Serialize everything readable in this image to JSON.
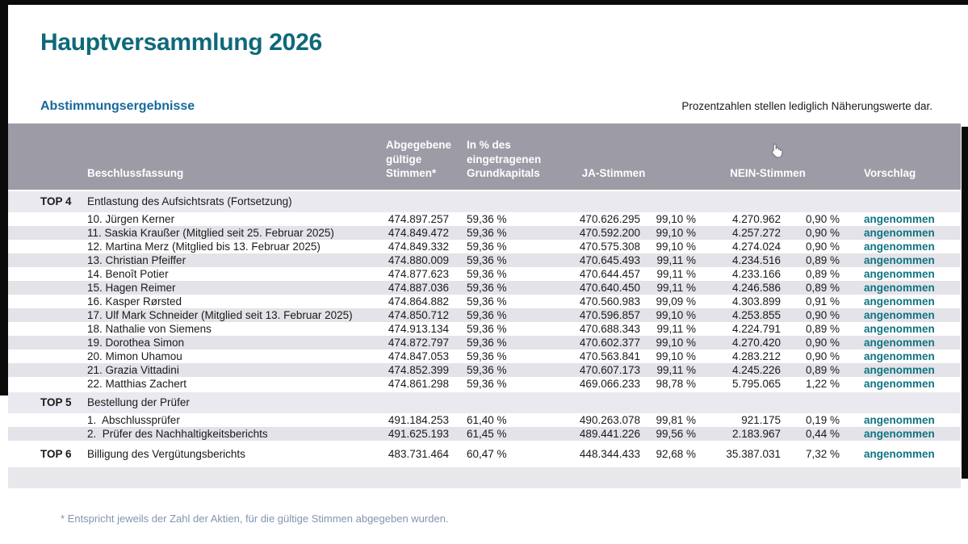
{
  "page": {
    "title": "Hauptversammlung 2026",
    "section_title": "Abstimmungsergebnisse",
    "note": "Prozentzahlen stellen lediglich Näherungswerte dar.",
    "footnote": "* Entspricht jeweils der Zahl der Aktien, für die gültige Stimmen abgegeben wurden."
  },
  "colors": {
    "title_teal": "#0e6978",
    "subtitle_blue": "#17689b",
    "accepted_teal": "#0f7482",
    "header_band_gray": "#9c9ba6",
    "row_stripe_gray": "#e4e3e9",
    "footnote_blue_gray": "#7f96af"
  },
  "icons": {
    "cursor": "hand-cursor-icon"
  },
  "table": {
    "headers": {
      "beschlussfassung": "Beschlussfassung",
      "stimmen_lines": [
        "Abgegebene",
        "gültige",
        "Stimmen*"
      ],
      "grundkapital_lines": [
        "In % des",
        "eingetragenen",
        "Grundkapitals"
      ],
      "ja": "JA-Stimmen",
      "nein": "NEIN-Stimmen",
      "vorschlag": "Vorschlag"
    },
    "sections": [
      {
        "top": "TOP 4",
        "title": "Entlastung des Aufsichtsrats (Fortsetzung)",
        "rows": [
          {
            "name": "10. Jürgen Kerner",
            "stimmen": "474.897.257",
            "kapital": "59,36 %",
            "ja": "470.626.295",
            "ja_pct": "99,10 %",
            "nein": "4.270.962",
            "nein_pct": "0,90 %",
            "vorschlag": "angenommen"
          },
          {
            "name": "11. Saskia Kraußer (Mitglied seit 25. Februar 2025)",
            "stimmen": "474.849.472",
            "kapital": "59,36 %",
            "ja": "470.592.200",
            "ja_pct": "99,10 %",
            "nein": "4.257.272",
            "nein_pct": "0,90 %",
            "vorschlag": "angenommen"
          },
          {
            "name": "12. Martina Merz (Mitglied bis 13. Februar 2025)",
            "stimmen": "474.849.332",
            "kapital": "59,36 %",
            "ja": "470.575.308",
            "ja_pct": "99,10 %",
            "nein": "4.274.024",
            "nein_pct": "0,90 %",
            "vorschlag": "angenommen"
          },
          {
            "name": "13. Christian Pfeiffer",
            "stimmen": "474.880.009",
            "kapital": "59,36 %",
            "ja": "470.645.493",
            "ja_pct": "99,11 %",
            "nein": "4.234.516",
            "nein_pct": "0,89 %",
            "vorschlag": "angenommen"
          },
          {
            "name": "14. Benoît Potier",
            "stimmen": "474.877.623",
            "kapital": "59,36 %",
            "ja": "470.644.457",
            "ja_pct": "99,11 %",
            "nein": "4.233.166",
            "nein_pct": "0,89 %",
            "vorschlag": "angenommen"
          },
          {
            "name": "15. Hagen Reimer",
            "stimmen": "474.887.036",
            "kapital": "59,36 %",
            "ja": "470.640.450",
            "ja_pct": "99,11 %",
            "nein": "4.246.586",
            "nein_pct": "0,89 %",
            "vorschlag": "angenommen"
          },
          {
            "name": "16. Kasper Rørsted",
            "stimmen": "474.864.882",
            "kapital": "59,36 %",
            "ja": "470.560.983",
            "ja_pct": "99,09 %",
            "nein": "4.303.899",
            "nein_pct": "0,91 %",
            "vorschlag": "angenommen"
          },
          {
            "name": "17. Ulf Mark Schneider (Mitglied seit 13. Februar 2025)",
            "stimmen": "474.850.712",
            "kapital": "59,36 %",
            "ja": "470.596.857",
            "ja_pct": "99,10 %",
            "nein": "4.253.855",
            "nein_pct": "0,90 %",
            "vorschlag": "angenommen"
          },
          {
            "name": "18. Nathalie von Siemens",
            "stimmen": "474.913.134",
            "kapital": "59,36 %",
            "ja": "470.688.343",
            "ja_pct": "99,11 %",
            "nein": "4.224.791",
            "nein_pct": "0,89 %",
            "vorschlag": "angenommen"
          },
          {
            "name": "19. Dorothea Simon",
            "stimmen": "474.872.797",
            "kapital": "59,36 %",
            "ja": "470.602.377",
            "ja_pct": "99,10 %",
            "nein": "4.270.420",
            "nein_pct": "0,90 %",
            "vorschlag": "angenommen"
          },
          {
            "name": "20. Mimon Uhamou",
            "stimmen": "474.847.053",
            "kapital": "59,36 %",
            "ja": "470.563.841",
            "ja_pct": "99,10 %",
            "nein": "4.283.212",
            "nein_pct": "0,90 %",
            "vorschlag": "angenommen"
          },
          {
            "name": "21. Grazia Vittadini",
            "stimmen": "474.852.399",
            "kapital": "59,36 %",
            "ja": "470.607.173",
            "ja_pct": "99,11 %",
            "nein": "4.245.226",
            "nein_pct": "0,89 %",
            "vorschlag": "angenommen"
          },
          {
            "name": "22. Matthias Zachert",
            "stimmen": "474.861.298",
            "kapital": "59,36 %",
            "ja": "469.066.233",
            "ja_pct": "98,78 %",
            "nein": "5.795.065",
            "nein_pct": "1,22 %",
            "vorschlag": "angenommen"
          }
        ]
      },
      {
        "top": "TOP 5",
        "title": "Bestellung der Prüfer",
        "rows": [
          {
            "name": "1.  Abschlussprüfer",
            "stimmen": "491.184.253",
            "kapital": "61,40 %",
            "ja": "490.263.078",
            "ja_pct": "99,81 %",
            "nein": "921.175",
            "nein_pct": "0,19 %",
            "vorschlag": "angenommen"
          },
          {
            "name": "2.  Prüfer des Nachhaltigkeitsberichts",
            "stimmen": "491.625.193",
            "kapital": "61,45 %",
            "ja": "489.441.226",
            "ja_pct": "99,56 %",
            "nein": "2.183.967",
            "nein_pct": "0,44 %",
            "vorschlag": "angenommen"
          }
        ]
      },
      {
        "top": "TOP 6",
        "title": "Billigung des Vergütungsberichts",
        "values": {
          "stimmen": "483.731.464",
          "kapital": "60,47 %",
          "ja": "448.344.433",
          "ja_pct": "92,68 %",
          "nein": "35.387.031",
          "nein_pct": "7,32 %",
          "vorschlag": "angenommen"
        },
        "rows": []
      }
    ]
  }
}
